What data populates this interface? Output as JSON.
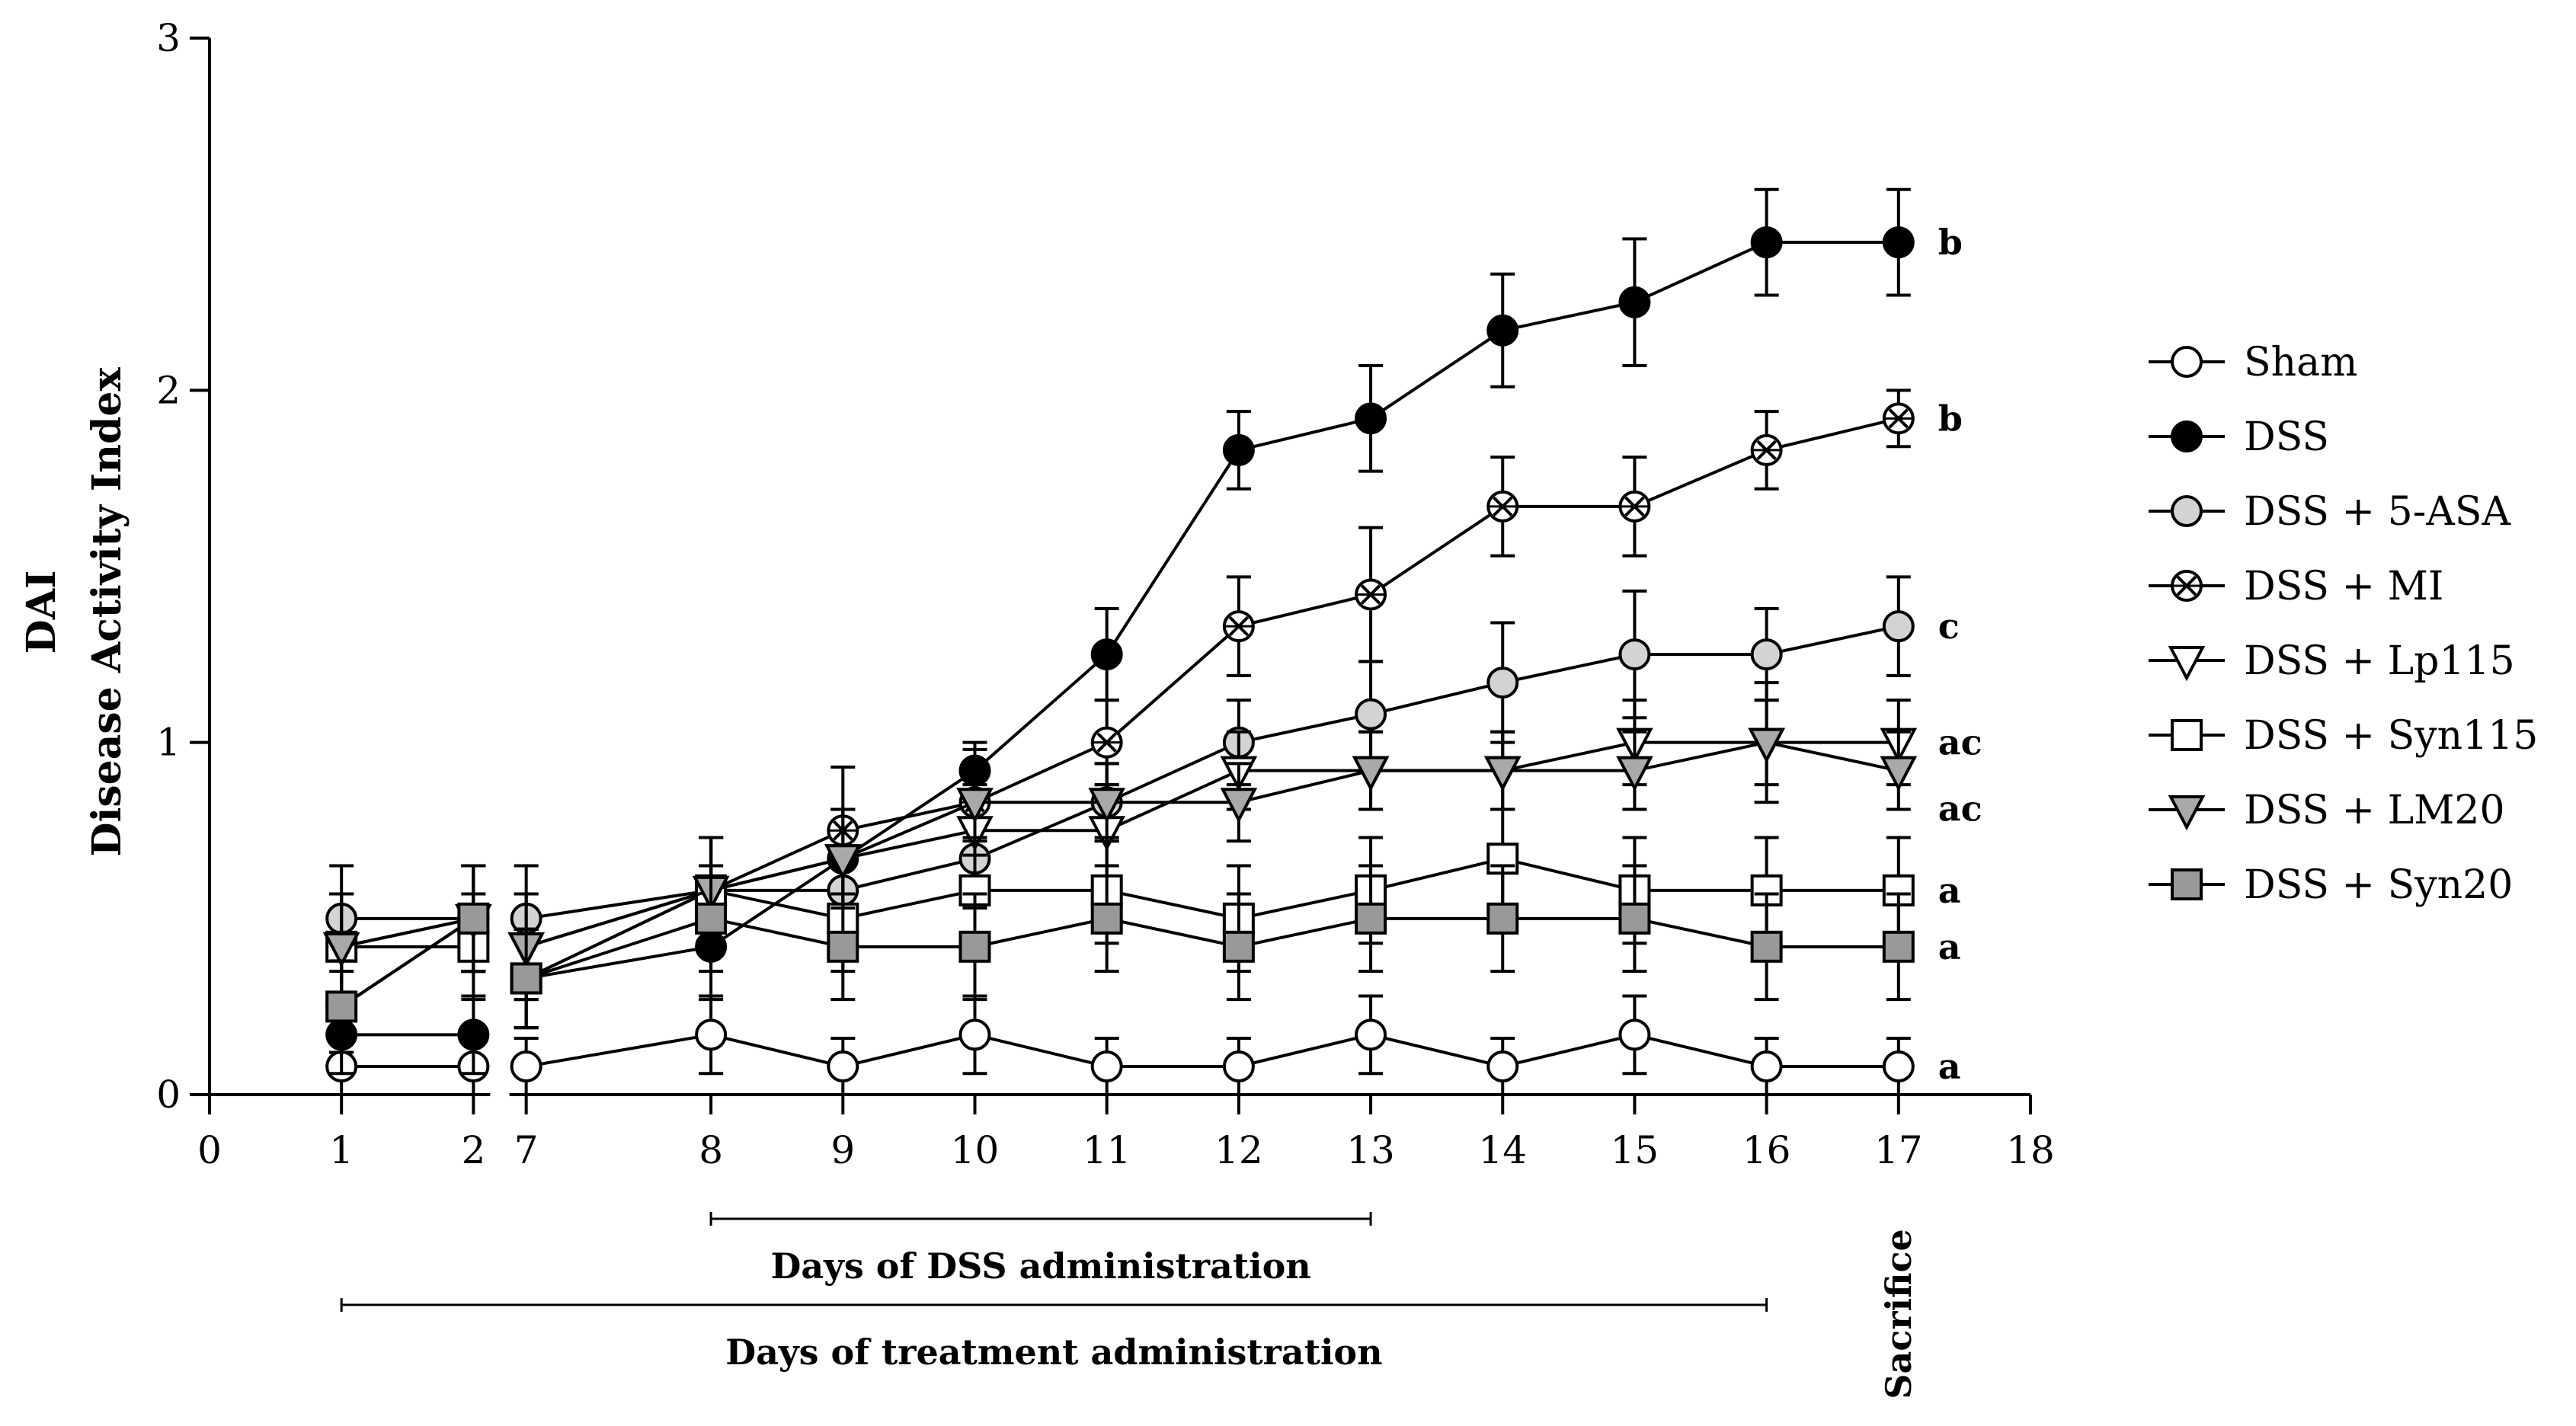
{
  "chart_data": {
    "type": "line",
    "ylabel_top": "DAI",
    "ylabel_bottom": "Disease Activity Index",
    "xlim": [
      0,
      18
    ],
    "ylim": [
      0,
      3
    ],
    "x_ticks": [
      {
        "label": "0",
        "pos": 0
      },
      {
        "label": "1",
        "pos": 1
      },
      {
        "label": "2",
        "pos": 2
      },
      {
        "label": "7",
        "pos": 2.4
      },
      {
        "label": "8",
        "pos": 3.8
      },
      {
        "label": "9",
        "pos": 4.8
      },
      {
        "label": "10",
        "pos": 5.8
      },
      {
        "label": "11",
        "pos": 6.8
      },
      {
        "label": "12",
        "pos": 7.8
      },
      {
        "label": "13",
        "pos": 8.8
      },
      {
        "label": "14",
        "pos": 9.8
      },
      {
        "label": "15",
        "pos": 10.8
      },
      {
        "label": "16",
        "pos": 11.8
      },
      {
        "label": "17",
        "pos": 12.8
      },
      {
        "label": "18",
        "pos": 13.8
      }
    ],
    "y_ticks": [
      "0",
      "1",
      "2",
      "3"
    ],
    "x": [
      1,
      2,
      7,
      8,
      9,
      10,
      11,
      12,
      13,
      14,
      15,
      16,
      17
    ],
    "series": [
      {
        "name": "Sham",
        "marker": "circle",
        "fill": "#ffffff",
        "sig": "a",
        "values": [
          0.08,
          0.08,
          0.08,
          0.17,
          0.08,
          0.17,
          0.08,
          0.08,
          0.17,
          0.08,
          0.17,
          0.08,
          0.08
        ],
        "err": [
          0.08,
          0.08,
          0.08,
          0.11,
          0.08,
          0.11,
          0.08,
          0.08,
          0.11,
          0.08,
          0.11,
          0.08,
          0.08
        ]
      },
      {
        "name": "DSS",
        "marker": "circle",
        "fill": "#000000",
        "sig": "b",
        "values": [
          0.17,
          0.17,
          0.33,
          0.42,
          0.67,
          0.92,
          1.25,
          1.83,
          1.92,
          2.17,
          2.25,
          2.42,
          2.42
        ],
        "err": [
          0.11,
          0.11,
          0.14,
          0.15,
          0.14,
          0.08,
          0.13,
          0.11,
          0.15,
          0.16,
          0.18,
          0.15,
          0.15
        ]
      },
      {
        "name": "DSS + 5-ASA",
        "marker": "circle",
        "fill": "#d3d3d3",
        "sig": "c",
        "values": [
          0.5,
          0.5,
          0.5,
          0.58,
          0.58,
          0.67,
          0.83,
          1.0,
          1.08,
          1.17,
          1.25,
          1.25,
          1.33
        ],
        "err": [
          0.15,
          0.15,
          0.15,
          0.15,
          0.15,
          0.14,
          0.11,
          0.12,
          0.15,
          0.17,
          0.18,
          0.13,
          0.14
        ]
      },
      {
        "name": "DSS + MI",
        "marker": "hatched",
        "fill": "#ffffff",
        "sig": "b",
        "values": [
          0.25,
          0.5,
          0.33,
          0.58,
          0.75,
          0.83,
          1.0,
          1.33,
          1.42,
          1.67,
          1.67,
          1.83,
          1.92
        ],
        "err": [
          0.13,
          0.15,
          0.14,
          0.15,
          0.18,
          0.15,
          0.12,
          0.14,
          0.19,
          0.14,
          0.14,
          0.11,
          0.08
        ]
      },
      {
        "name": "DSS + Lp115",
        "marker": "triangle-down",
        "fill": "#ffffff",
        "sig": "ac",
        "values": [
          0.42,
          0.5,
          0.42,
          0.58,
          0.67,
          0.75,
          0.75,
          0.92,
          0.92,
          0.92,
          1.0,
          1.0,
          1.0
        ],
        "err": [
          0.15,
          0.15,
          0.15,
          0.15,
          0.14,
          0.13,
          0.13,
          0.11,
          0.11,
          0.11,
          0.12,
          0.12,
          0.12
        ]
      },
      {
        "name": "DSS + Syn115",
        "marker": "square",
        "fill": "#ffffff",
        "sig": "a",
        "values": [
          0.42,
          0.42,
          0.33,
          0.58,
          0.5,
          0.58,
          0.58,
          0.5,
          0.58,
          0.67,
          0.58,
          0.58,
          0.58
        ],
        "err": [
          0.15,
          0.15,
          0.14,
          0.15,
          0.15,
          0.15,
          0.15,
          0.15,
          0.15,
          0.14,
          0.15,
          0.15,
          0.15
        ]
      },
      {
        "name": "DSS + LM20",
        "marker": "triangle-down",
        "fill": "#a9a9a9",
        "sig": "ac",
        "values": [
          0.42,
          0.5,
          0.42,
          0.58,
          0.67,
          0.83,
          0.83,
          0.83,
          0.92,
          0.92,
          0.92,
          1.0,
          0.92
        ],
        "err": [
          0.15,
          0.15,
          0.15,
          0.15,
          0.14,
          0.11,
          0.11,
          0.11,
          0.11,
          0.11,
          0.11,
          0.17,
          0.11
        ]
      },
      {
        "name": "DSS + Syn20",
        "marker": "square",
        "fill": "#999999",
        "sig": "a",
        "values": [
          0.25,
          0.5,
          0.33,
          0.5,
          0.42,
          0.42,
          0.5,
          0.42,
          0.5,
          0.5,
          0.5,
          0.42,
          0.42
        ],
        "err": [
          0.13,
          0.15,
          0.14,
          0.15,
          0.15,
          0.15,
          0.15,
          0.15,
          0.15,
          0.15,
          0.15,
          0.15,
          0.15
        ]
      }
    ],
    "periods": [
      {
        "label": "Days of DSS administration",
        "from": 3.8,
        "to": 8.8
      },
      {
        "label": "Days of treatment administration",
        "from": 1,
        "to": 11.8
      }
    ],
    "sacrifice_label": "Sacrifice"
  }
}
